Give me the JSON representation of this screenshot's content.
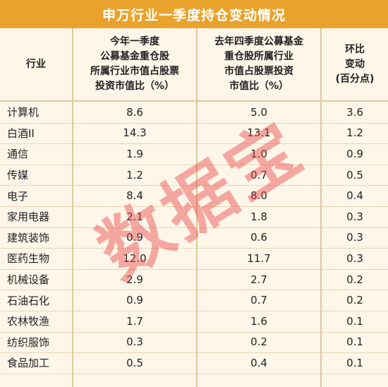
{
  "title": "申万行业一季度持仓变动情况",
  "headers": [
    "行业",
    "今年一季度\n公募基金重仓股\n所属行业市值占股票\n投资市值比（%）",
    "去年四季度公募基金\n重仓股所属行业\n市值占股票投资\n市值比（%）",
    "环比\n变动\n(百分点)"
  ],
  "rows": [
    [
      "计算机",
      "8.6",
      "5.0",
      "3.6"
    ],
    [
      "白酒II",
      "14.3",
      "13.1",
      "1.2"
    ],
    [
      "通信",
      "1.9",
      "1.0",
      "0.9"
    ],
    [
      "传媒",
      "1.2",
      "0.7",
      "0.5"
    ],
    [
      "电子",
      "8.4",
      "8.0",
      "0.4"
    ],
    [
      "家用电器",
      "2.1",
      "1.8",
      "0.3"
    ],
    [
      "建筑装饰",
      "0.9",
      "0.6",
      "0.3"
    ],
    [
      "医药生物",
      "12.0",
      "11.7",
      "0.3"
    ],
    [
      "机械设备",
      "2.9",
      "2.7",
      "0.2"
    ],
    [
      "石油石化",
      "0.9",
      "0.7",
      "0.2"
    ],
    [
      "农林牧渔",
      "1.7",
      "1.6",
      "0.1"
    ],
    [
      "纺织服饰",
      "0.3",
      "0.2",
      "0.1"
    ],
    [
      "食品加工",
      "0.5",
      "0.4",
      "0.1"
    ]
  ],
  "watermark": "数据宝",
  "colors": {
    "title_bg": "#e9a32d",
    "page_bg": "#fdf6e9",
    "watermark": "#e84646"
  }
}
